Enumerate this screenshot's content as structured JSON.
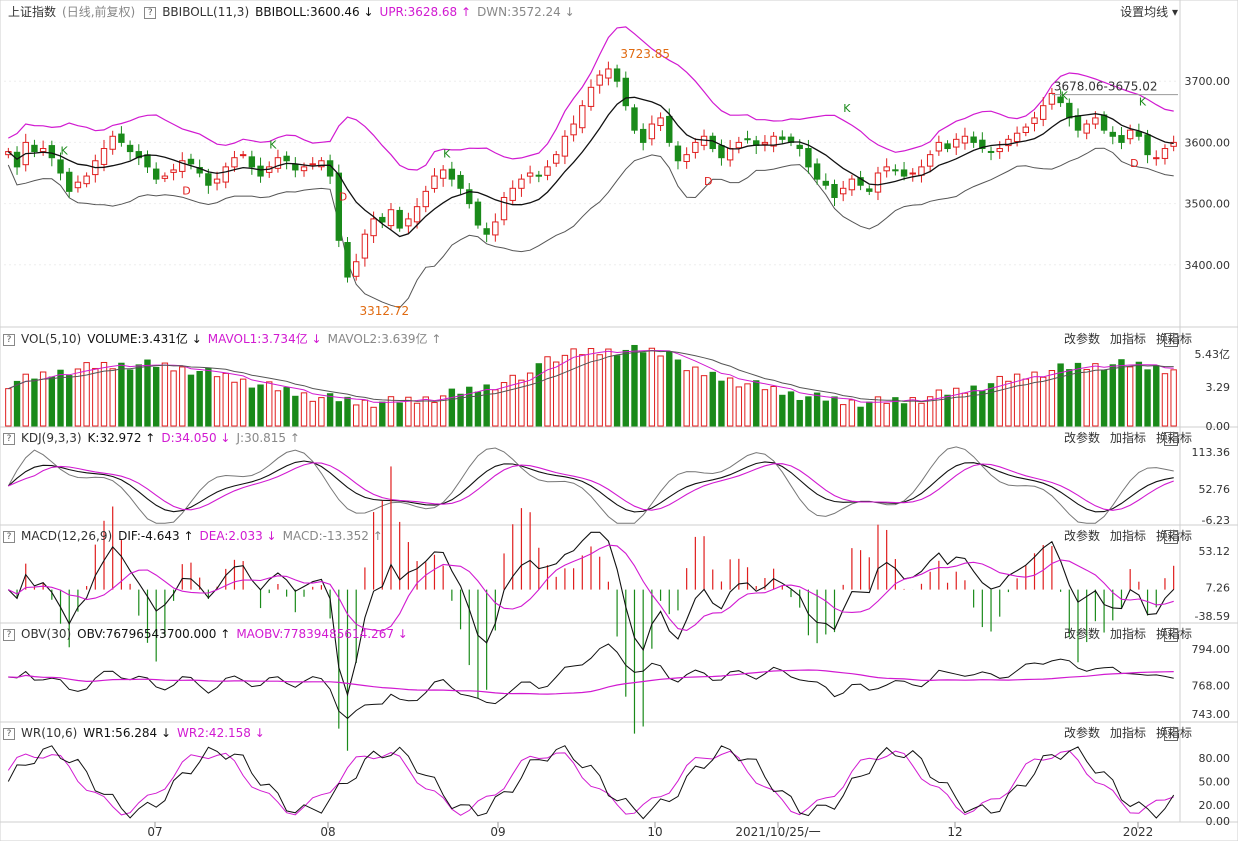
{
  "header": {
    "title": "上证指数",
    "mode": "(日线,前复权)",
    "indicator": "BBIBOLL(11,3)",
    "bbiboll": "BBIBOLL:3600.46",
    "upr": "UPR:3628.68",
    "dwn": "DWN:3572.24",
    "settings": "设置均线"
  },
  "panels": {
    "vol": {
      "name": "VOL(5,10)",
      "v1": "VOLUME:3.431亿",
      "v2": "MAVOL1:3.734亿",
      "v3": "MAVOL2:3.639亿"
    },
    "kdj": {
      "name": "KDJ(9,3,3)",
      "v1": "K:32.972",
      "v2": "D:34.050",
      "v3": "J:30.815"
    },
    "macd": {
      "name": "MACD(12,26,9)",
      "v1": "DIF:-4.643",
      "v2": "DEA:2.033",
      "v3": "MACD:-13.352"
    },
    "obv": {
      "name": "OBV(30)",
      "v1": "OBV:76796543700.000",
      "v2": "MAOBV:77839485614.267"
    },
    "wr": {
      "name": "WR(10,6)",
      "v1": "WR1:56.284",
      "v2": "WR2:42.158"
    }
  },
  "panel_buttons": {
    "params": "改参数",
    "add": "加指标",
    "swap": "换指标",
    "close": "×"
  },
  "colors": {
    "up": "#e01e1e",
    "down": "#1a8a1a",
    "upper_band": "#d11ad1",
    "bbi": "#111111",
    "lower_band": "#555555"
  },
  "chart_data": {
    "type": "candlestick",
    "x_labels": [
      "07",
      "08",
      "09",
      "10",
      "2021/10/25/一",
      "12",
      "2022"
    ],
    "price_axis": {
      "ticks": [
        3700,
        3600,
        3500,
        3400
      ],
      "labels": [
        "3700.00",
        "3600.00",
        "3500.00",
        "3400.00"
      ],
      "ylim": [
        3300,
        3800
      ]
    },
    "annotations": {
      "high": "3723.85",
      "low": "3312.72",
      "range": "3678.06-3675.02"
    },
    "markers": [
      "K",
      "D"
    ],
    "candles_close": [
      3585,
      3560,
      3600,
      3585,
      3590,
      3575,
      3550,
      3520,
      3535,
      3545,
      3570,
      3590,
      3610,
      3600,
      3585,
      3575,
      3560,
      3540,
      3545,
      3555,
      3570,
      3565,
      3550,
      3530,
      3540,
      3560,
      3575,
      3580,
      3560,
      3545,
      3560,
      3575,
      3570,
      3555,
      3560,
      3565,
      3570,
      3545,
      3440,
      3380,
      3405,
      3450,
      3475,
      3470,
      3490,
      3460,
      3475,
      3495,
      3520,
      3545,
      3555,
      3540,
      3525,
      3500,
      3465,
      3450,
      3470,
      3510,
      3525,
      3540,
      3550,
      3545,
      3560,
      3580,
      3610,
      3630,
      3660,
      3690,
      3710,
      3720,
      3700,
      3660,
      3620,
      3600,
      3630,
      3640,
      3600,
      3570,
      3580,
      3600,
      3610,
      3590,
      3575,
      3590,
      3600,
      3605,
      3595,
      3600,
      3610,
      3605,
      3600,
      3590,
      3560,
      3540,
      3530,
      3510,
      3525,
      3540,
      3530,
      3520,
      3550,
      3560,
      3555,
      3545,
      3550,
      3560,
      3580,
      3600,
      3590,
      3605,
      3610,
      3600,
      3590,
      3585,
      3590,
      3605,
      3615,
      3625,
      3640,
      3660,
      3680,
      3665,
      3640,
      3620,
      3630,
      3640,
      3620,
      3610,
      3600,
      3620,
      3610,
      3580,
      3575,
      3590,
      3600
    ],
    "vol_axis": {
      "labels": [
        "5.43亿",
        "3.29",
        "0.00"
      ],
      "max": 5.43
    },
    "kdj_axis": {
      "labels": [
        "113.36",
        "52.76",
        "-6.23"
      ],
      "range": [
        -6.23,
        113.36
      ]
    },
    "macd_axis": {
      "labels": [
        "53.12",
        "7.26",
        "-38.59"
      ],
      "range": [
        -38.59,
        53.12
      ]
    },
    "obv_axis": {
      "labels": [
        "794.00",
        "768.00",
        "743.00"
      ],
      "range": [
        743,
        794
      ]
    },
    "wr_axis": {
      "labels": [
        "80.00",
        "50.00",
        "20.00",
        "0.00"
      ],
      "range": [
        0,
        100
      ]
    }
  }
}
